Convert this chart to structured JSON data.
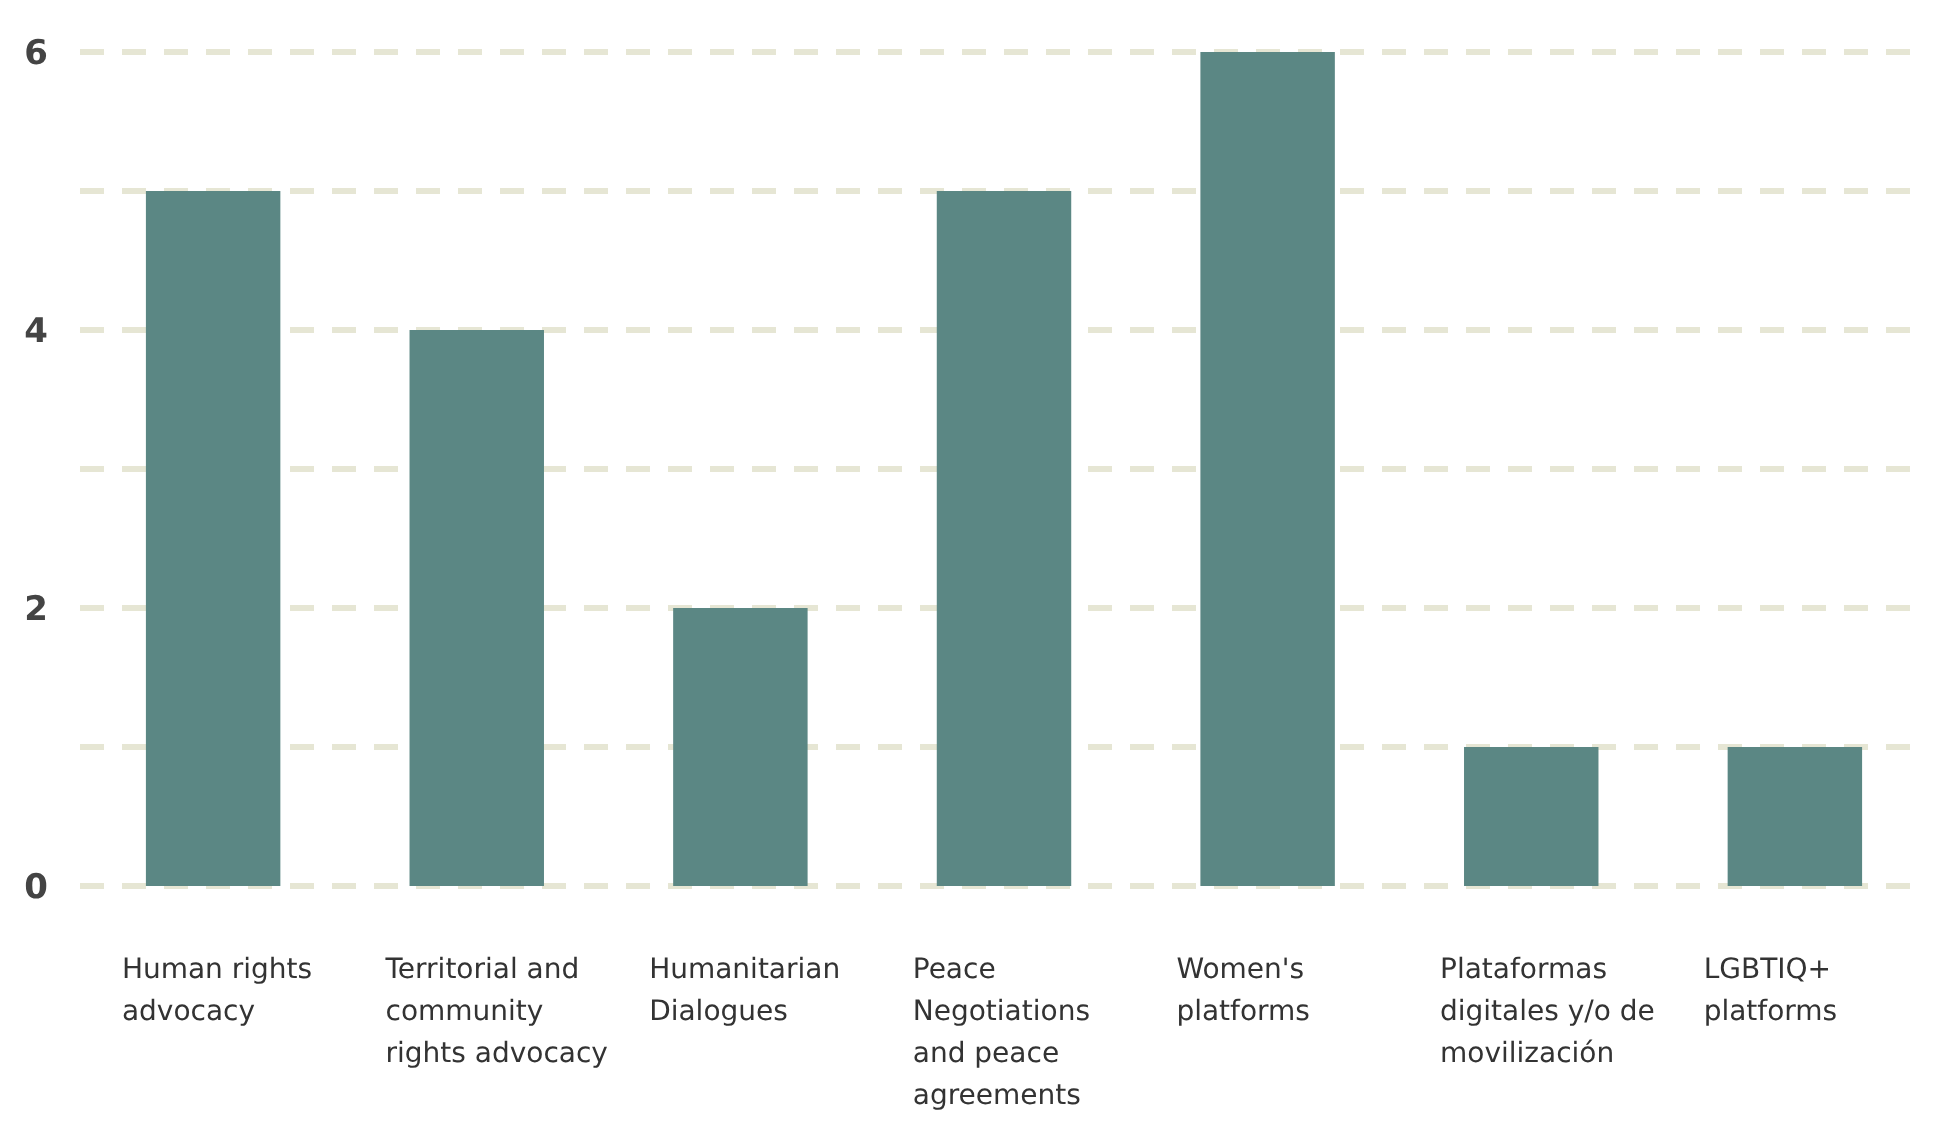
{
  "chart_data": {
    "type": "bar",
    "categories": [
      "Human rights advocacy",
      "Territorial and community rights advocacy",
      "Humanitarian Dialogues",
      "Peace Negotiations and peace agreements",
      "Women's platforms",
      "Plataformas digitales y/o de movilización",
      "LGBTIQ+ platforms"
    ],
    "values": [
      5,
      4,
      2,
      5,
      6,
      1,
      1
    ],
    "color": "#5b8784",
    "ylim": [
      0,
      6
    ],
    "yticks": [
      0,
      {
        "value": 1,
        "label": null
      },
      2,
      {
        "value": 3,
        "label": null
      },
      4,
      {
        "value": 5,
        "label": null
      },
      6
    ],
    "grid": "y"
  }
}
